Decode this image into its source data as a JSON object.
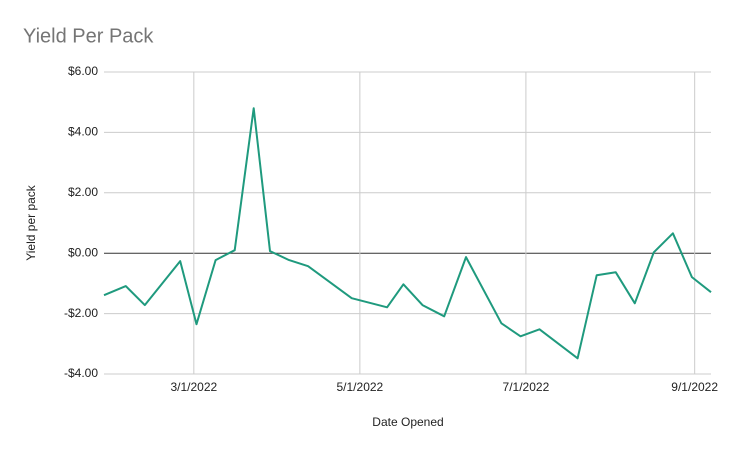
{
  "chart_data": {
    "type": "line",
    "title": "Yield Per Pack",
    "x_label": "Date Opened",
    "y_label": "Yield per pack",
    "x": [
      "1/27/2022",
      "2/4/2022",
      "2/11/2022",
      "2/24/2022",
      "3/2/2022",
      "3/9/2022",
      "3/16/2022",
      "3/23/2022",
      "3/29/2022",
      "4/5/2022",
      "4/12/2022",
      "4/28/2022",
      "5/11/2022",
      "5/17/2022",
      "5/24/2022",
      "6/1/2022",
      "6/9/2022",
      "6/22/2022",
      "6/29/2022",
      "7/6/2022",
      "7/20/2022",
      "7/27/2022",
      "8/3/2022",
      "8/10/2022",
      "8/17/2022",
      "8/24/2022",
      "8/31/2022",
      "9/7/2022"
    ],
    "series": [
      {
        "name": "Yield per pack",
        "color": "#1f9a7e",
        "values": [
          -1.39,
          -1.09,
          -1.72,
          -0.26,
          -2.35,
          -0.23,
          0.1,
          4.8,
          0.07,
          -0.23,
          -0.43,
          -1.49,
          -1.79,
          -1.03,
          -1.72,
          -2.09,
          -0.13,
          -2.32,
          -2.75,
          -2.52,
          -3.48,
          -0.73,
          -0.63,
          -1.66,
          0.03,
          0.66,
          -0.79,
          -1.29
        ]
      }
    ],
    "xlim": [
      "1/27/2022",
      "9/7/2022"
    ],
    "xticks": [
      "3/1/2022",
      "5/1/2022",
      "7/1/2022",
      "9/1/2022"
    ],
    "ylim": [
      -4,
      6
    ],
    "yticks": [
      {
        "value": -4,
        "label": "-$4.00"
      },
      {
        "value": -2,
        "label": "-$2.00"
      },
      {
        "value": 0,
        "label": "$0.00"
      },
      {
        "value": 2,
        "label": "$2.00"
      },
      {
        "value": 4,
        "label": "$4.00"
      },
      {
        "value": 6,
        "label": "$6.00"
      }
    ],
    "grid": true
  }
}
